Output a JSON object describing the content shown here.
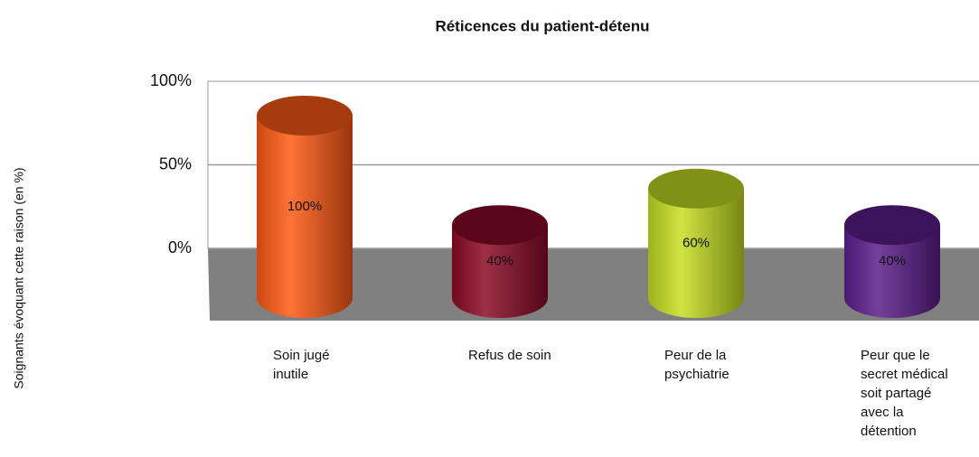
{
  "chart_data": {
    "type": "bar3d",
    "title": "Réticences du patient-détenu",
    "y_label": "Soignants évoquant cette raison (en %)",
    "categories": [
      "Soin jugé inutile",
      "Refus de soin",
      "Peur de la psychiatrie",
      "Peur que le secret médical soit partagé avec la détention"
    ],
    "values": [
      100,
      40,
      60,
      40
    ],
    "value_labels": [
      "100%",
      "40%",
      "60%",
      "40%"
    ],
    "colors": [
      "#ff5a14",
      "#8c0a26",
      "#c6de22",
      "#5b1e8c"
    ],
    "ylim": [
      0,
      100
    ],
    "yticks": [
      {
        "value": 0,
        "label": "0%"
      },
      {
        "value": 50,
        "label": "50%"
      },
      {
        "value": 100,
        "label": "100%"
      }
    ],
    "grid": true
  }
}
